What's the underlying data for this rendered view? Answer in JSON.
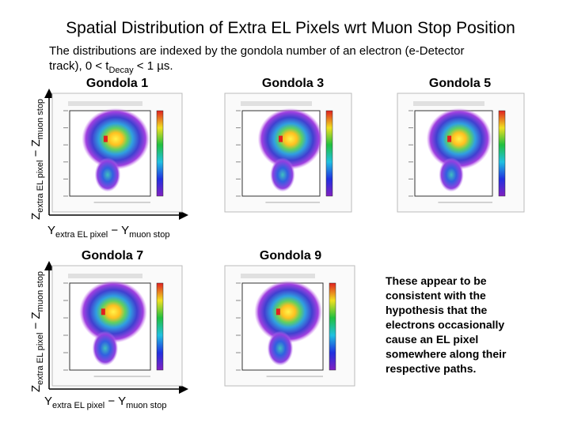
{
  "title": "Spatial Distribution of Extra EL Pixels wrt Muon Stop Position",
  "subtitle": {
    "line1": "The distributions are indexed by the gondola number of an electron (e-Detector",
    "line2_pre": "track), 0 < t",
    "line2_sub": "Decay",
    "line2_post": " < 1 µs."
  },
  "panels": [
    {
      "label": "Gondola 1"
    },
    {
      "label": "Gondola 3"
    },
    {
      "label": "Gondola 5"
    },
    {
      "label": "Gondola 7"
    },
    {
      "label": "Gondola 9"
    }
  ],
  "axis_labels": {
    "z": {
      "main": "Z",
      "sub1": "extra EL pixel",
      "mid": " − Z",
      "sub2": "muon stop"
    },
    "y": {
      "main": "Y",
      "sub1": "extra EL pixel",
      "mid": " − Y",
      "sub2": "muon stop"
    }
  },
  "note": [
    "These appear to be",
    "consistent with the",
    "hypothesis that the",
    "electrons occasionally",
    "cause an EL pixel",
    "somewhere along their",
    "respective paths."
  ]
}
